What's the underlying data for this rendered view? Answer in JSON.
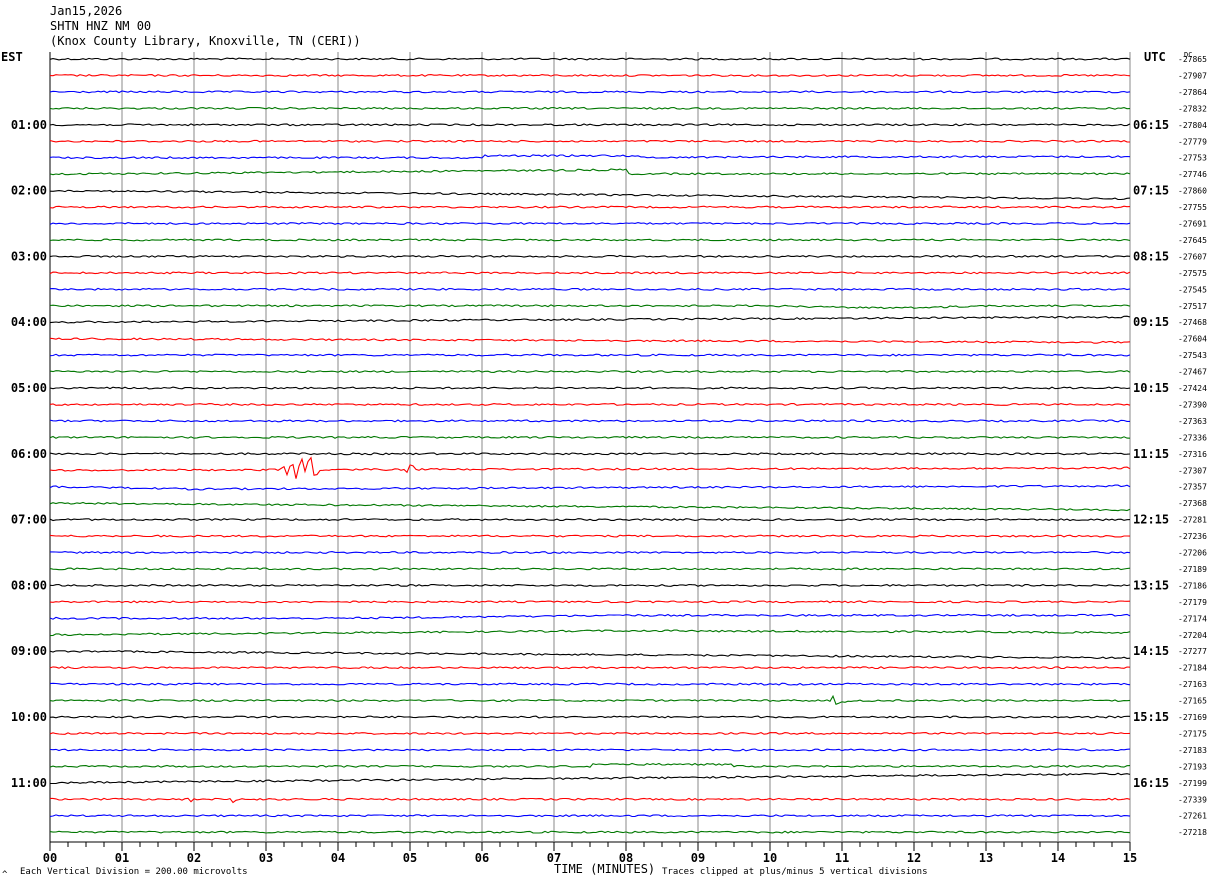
{
  "header": {
    "date": "Jan15,2026",
    "station": "SHTN HNZ NM 00",
    "location": "(Knox County Library, Knoxville, TN (CERI))"
  },
  "footer": {
    "vertical_division": "Each Vertical Division =  200.00 microvolts",
    "clip_note": "Traces clipped at plus/minus 5 vertical divisions",
    "corner_mark": "^"
  },
  "chart_data": {
    "type": "line",
    "title": "SHTN HNZ NM 00",
    "xlabel": "TIME (MINUTES)",
    "xlim": [
      0,
      15
    ],
    "x_ticks": [
      "00",
      "01",
      "02",
      "03",
      "04",
      "05",
      "06",
      "07",
      "08",
      "09",
      "10",
      "11",
      "12",
      "13",
      "14",
      "15"
    ],
    "left_axis_label": "EST",
    "right_axis_label": "UTC",
    "dc_label": "DC",
    "grid": true,
    "trace_colors": [
      "#000000",
      "#ff0000",
      "#0000ff",
      "#007700"
    ],
    "est_hours": [
      "01:00",
      "02:00",
      "03:00",
      "04:00",
      "05:00",
      "06:00",
      "07:00",
      "08:00",
      "09:00",
      "10:00",
      "11:00"
    ],
    "utc_hours": [
      "06:15",
      "07:15",
      "08:15",
      "09:15",
      "10:15",
      "11:15",
      "12:15",
      "13:15",
      "14:15",
      "15:15",
      "16:15"
    ],
    "dc_offsets": [
      "-27865",
      "-27907",
      "-27864",
      "-27832",
      "-27804",
      "-27779",
      "-27753",
      "-27746",
      "-27860",
      "-27755",
      "-27691",
      "-27645",
      "-27607",
      "-27575",
      "-27545",
      "-27517",
      "-27468",
      "-27604",
      "-27543",
      "-27467",
      "-27424",
      "-27390",
      "-27363",
      "-27336",
      "-27316",
      "-27307",
      "-27357",
      "-27368",
      "-27281",
      "-27236",
      "-27206",
      "-27189",
      "-27186",
      "-27179",
      "-27174",
      "-27204",
      "-27277",
      "-27184",
      "-27163",
      "-27165",
      "-27169",
      "-27175",
      "-27183",
      "-27193",
      "-27199",
      "-27339",
      "-27261",
      "-27218"
    ],
    "traces_count": 48,
    "minutes_per_trace": 15,
    "events": [
      {
        "trace": 25,
        "start_min": 3.2,
        "end_min": 3.8,
        "peak_divisions": 1.0
      },
      {
        "trace": 25,
        "start_min": 4.9,
        "end_min": 5.1,
        "peak_divisions": 0.4
      },
      {
        "trace": 39,
        "start_min": 10.8,
        "end_min": 11.1,
        "peak_divisions": 0.4
      },
      {
        "trace": 45,
        "start_min": 2.5,
        "end_min": 2.6,
        "peak_divisions": 0.5
      },
      {
        "trace": 45,
        "start_min": 1.9,
        "end_min": 2.0,
        "peak_divisions": 0.3
      }
    ]
  }
}
